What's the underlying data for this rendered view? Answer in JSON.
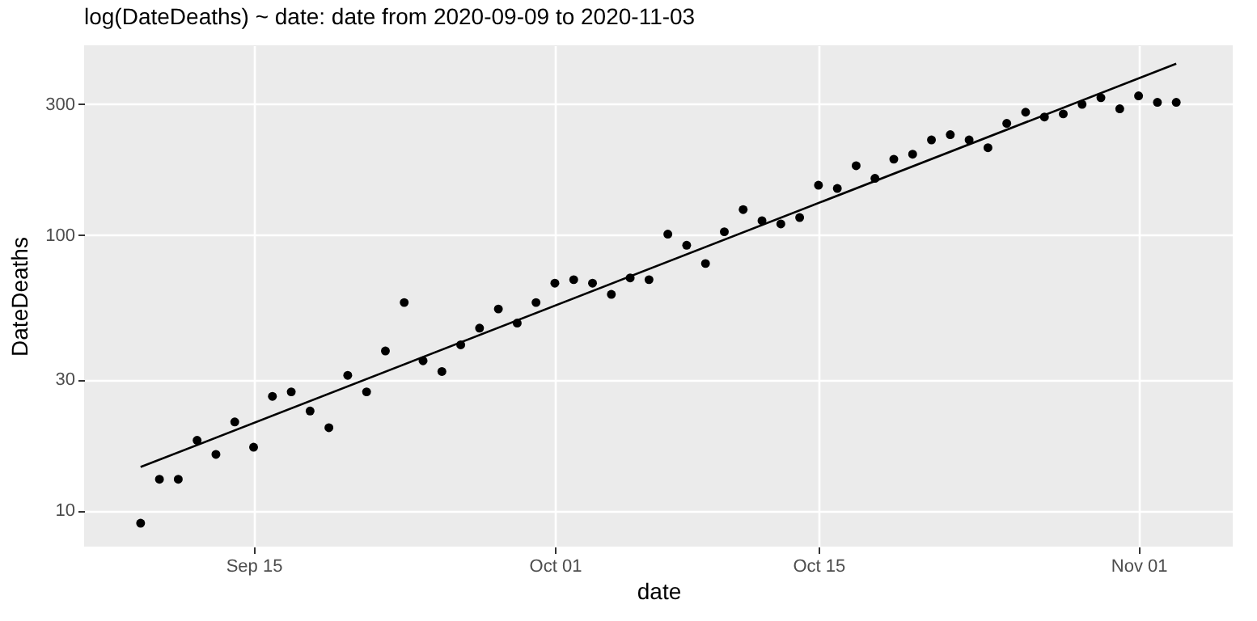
{
  "chart_data": {
    "type": "scatter",
    "title": "log(DateDeaths) ~ date: date from 2020-09-09 to 2020-11-03",
    "xlabel": "date",
    "ylabel": "DateDeaths",
    "x": [
      "2020-09-09",
      "2020-09-10",
      "2020-09-11",
      "2020-09-12",
      "2020-09-13",
      "2020-09-14",
      "2020-09-15",
      "2020-09-16",
      "2020-09-17",
      "2020-09-18",
      "2020-09-19",
      "2020-09-20",
      "2020-09-21",
      "2020-09-22",
      "2020-09-23",
      "2020-09-24",
      "2020-09-25",
      "2020-09-26",
      "2020-09-27",
      "2020-09-28",
      "2020-09-29",
      "2020-09-30",
      "2020-10-01",
      "2020-10-02",
      "2020-10-03",
      "2020-10-04",
      "2020-10-05",
      "2020-10-06",
      "2020-10-07",
      "2020-10-08",
      "2020-10-09",
      "2020-10-10",
      "2020-10-11",
      "2020-10-12",
      "2020-10-13",
      "2020-10-14",
      "2020-10-15",
      "2020-10-16",
      "2020-10-17",
      "2020-10-18",
      "2020-10-19",
      "2020-10-20",
      "2020-10-21",
      "2020-10-22",
      "2020-10-23",
      "2020-10-24",
      "2020-10-25",
      "2020-10-26",
      "2020-10-27",
      "2020-10-28",
      "2020-10-29",
      "2020-10-30",
      "2020-10-31",
      "2020-11-01",
      "2020-11-02",
      "2020-11-03"
    ],
    "series": [
      {
        "color": "#000000",
        "marker": "circle",
        "values": [
          9,
          13,
          13,
          18,
          16,
          21,
          17,
          26,
          27,
          23,
          20,
          31,
          27,
          38,
          57,
          35,
          32,
          40,
          46,
          54,
          48,
          57,
          67,
          69,
          67,
          61,
          70,
          69,
          101,
          92,
          79,
          103,
          124,
          113,
          110,
          116,
          152,
          148,
          179,
          161,
          189,
          197,
          222,
          232,
          222,
          208,
          255,
          280,
          269,
          276,
          299,
          316,
          288,
          321,
          304,
          304
        ]
      },
      {
        "type": "line",
        "color": "#000000",
        "line_style": "solid",
        "x": [
          "2020-09-09",
          "2020-11-03"
        ],
        "values": [
          14.4,
          420
        ]
      }
    ],
    "log": "y",
    "grid": true,
    "xlim": [
      "2020-09-06",
      "2020-11-06"
    ],
    "ylim": [
      7.4,
      490
    ],
    "xticks": [
      {
        "value": "2020-09-15",
        "label": "Sep 15"
      },
      {
        "value": "2020-10-01",
        "label": "Oct 01"
      },
      {
        "value": "2020-10-15",
        "label": "Oct 15"
      },
      {
        "value": "2020-11-01",
        "label": "Nov 01"
      }
    ],
    "yticks": [
      10,
      30,
      100,
      300
    ]
  }
}
